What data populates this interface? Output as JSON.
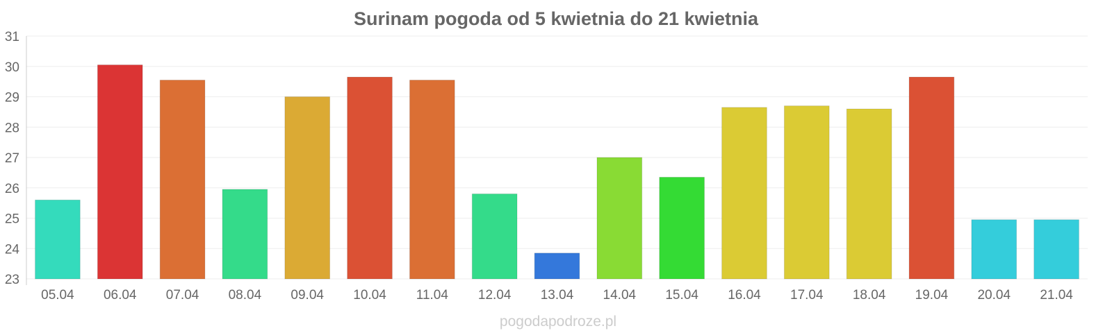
{
  "chart_data": {
    "type": "bar",
    "title": "Surinam pogoda od 5 kwietnia do 21 kwietnia",
    "xlabel": "",
    "ylabel": "",
    "ylim": [
      23,
      31
    ],
    "yticks": [
      23,
      24,
      25,
      26,
      27,
      28,
      29,
      30,
      31
    ],
    "grid": true,
    "legend": "none",
    "categories": [
      "05.04",
      "06.04",
      "07.04",
      "08.04",
      "09.04",
      "10.04",
      "11.04",
      "12.04",
      "13.04",
      "14.04",
      "15.04",
      "16.04",
      "17.04",
      "18.04",
      "19.04",
      "20.04",
      "21.04"
    ],
    "values": [
      25.6,
      30.05,
      29.55,
      25.95,
      29.0,
      29.65,
      29.55,
      25.8,
      23.85,
      27.0,
      26.35,
      28.65,
      28.7,
      28.6,
      29.65,
      24.95,
      24.95
    ],
    "colors": [
      "#34dbbc",
      "#db3434",
      "#db6f34",
      "#34db8a",
      "#dbaa34",
      "#db5134",
      "#db6f34",
      "#34db8a",
      "#3478db",
      "#89db34",
      "#34db34",
      "#dbcb34",
      "#dbcb34",
      "#dbcb34",
      "#db5134",
      "#34cddb",
      "#34cddb"
    ]
  },
  "watermark": "pogodapodroze.pl"
}
